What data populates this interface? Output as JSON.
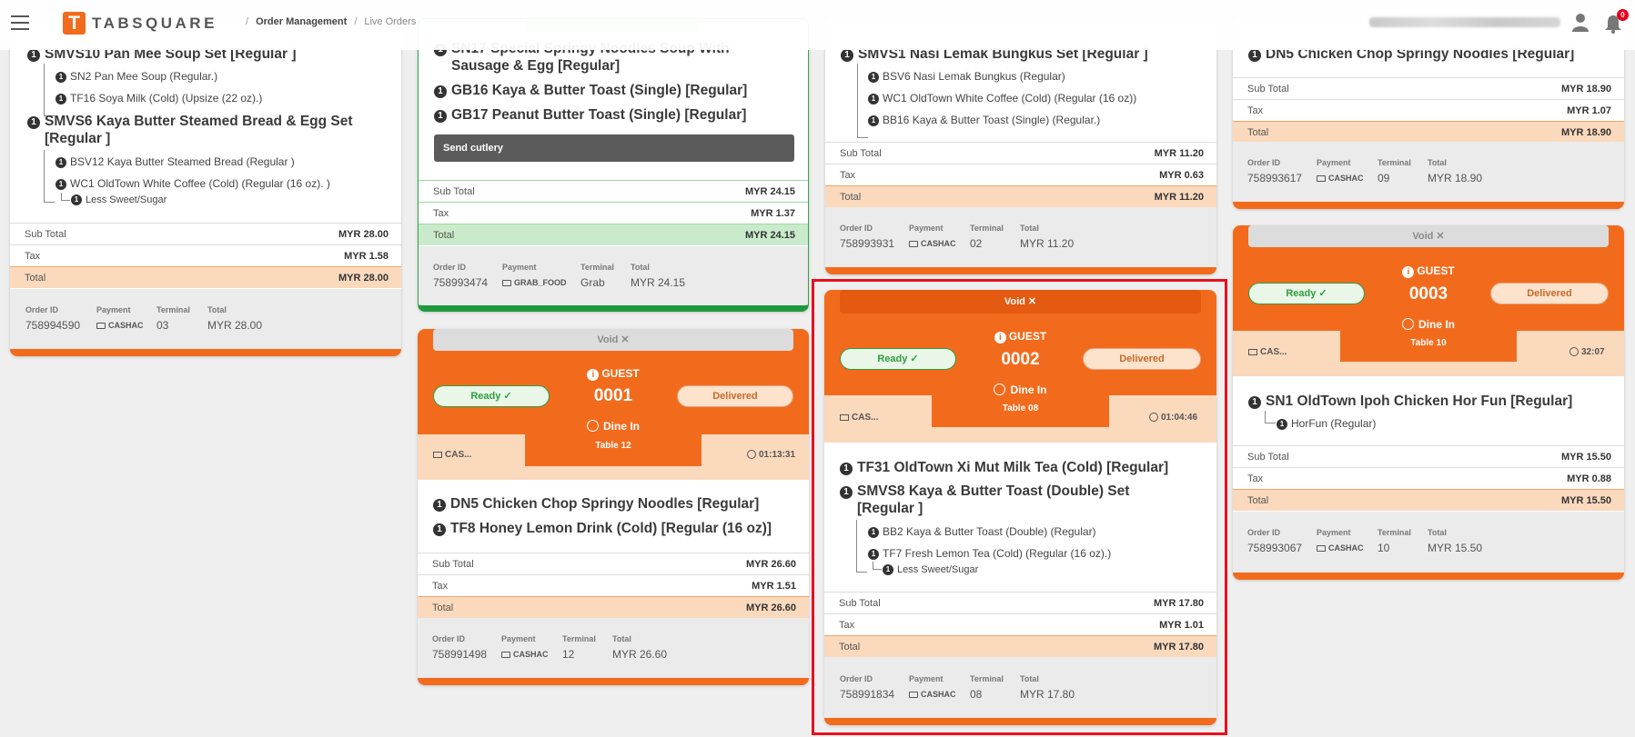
{
  "header": {
    "logo_letter": "T",
    "logo_text": "TABSQUARE",
    "breadcrumb": [
      "Order Management",
      "Live Orders"
    ],
    "notification_count": "0"
  },
  "colors": {
    "accent": "#f26b1d",
    "green": "#1e9a3d",
    "highlight": "#e8101d"
  },
  "card1": {
    "items": [
      {
        "qty": "1",
        "name": "SMVS10 Pan Mee Soup Set [Regular ]"
      },
      {
        "qty": "1",
        "name": "SN2 Pan Mee Soup (Regular.)"
      },
      {
        "qty": "1",
        "name": "TF16 Soya Milk (Cold) (Upsize (22 oz).)"
      },
      {
        "qty": "1",
        "name": "SMVS6 Kaya Butter Steamed Bread & Egg Set"
      },
      {
        "name": "[Regular ]"
      },
      {
        "qty": "1",
        "name": "BSV12 Kaya Butter Steamed Bread (Regular )"
      },
      {
        "qty": "1",
        "name": "WC1 OldTown White Coffee (Cold) (Regular (16 oz). )"
      },
      {
        "qty": "1",
        "name": "Less Sweet/Sugar"
      }
    ],
    "subtotal_label": "Sub Total",
    "subtotal": "MYR 28.00",
    "tax_label": "Tax",
    "tax": "MYR 1.58",
    "total_label": "Total",
    "total": "MYR 28.00",
    "order_id_label": "Order ID",
    "order_id": "758994590",
    "payment_label": "Payment",
    "payment": "CASHAC",
    "terminal_label": "Terminal",
    "terminal": "03",
    "foot_total_label": "Total",
    "foot_total": "MYR 28.00"
  },
  "card2": {
    "items": [
      {
        "qty": "1",
        "name": "SN17 Special Springy Noodles Soup With"
      },
      {
        "name": "Sausage & Egg [Regular]"
      },
      {
        "qty": "1",
        "name": "GB16 Kaya & Butter Toast (Single) [Regular]"
      },
      {
        "qty": "1",
        "name": "GB17 Peanut Butter Toast (Single) [Regular]"
      }
    ],
    "cutlery": "Send cutlery",
    "subtotal_label": "Sub Total",
    "subtotal": "MYR 24.15",
    "tax_label": "Tax",
    "tax": "MYR 1.37",
    "total_label": "Total",
    "total": "MYR 24.15",
    "order_id_label": "Order ID",
    "order_id": "758993474",
    "payment_label": "Payment",
    "payment": "GRAB_FOOD",
    "terminal_label": "Terminal",
    "terminal": "Grab",
    "foot_total_label": "Total",
    "foot_total": "MYR 24.15"
  },
  "card3": {
    "void": "Void ✕",
    "guest": "GUEST",
    "number": "0001",
    "ready": "Ready ✓",
    "delivered": "Delivered",
    "dine": "Dine In",
    "table": "Table 12",
    "cas": "CAS...",
    "timer": "01:13:31",
    "items": [
      {
        "qty": "1",
        "name": "DN5 Chicken Chop Springy Noodles [Regular]"
      },
      {
        "qty": "1",
        "name": "TF8 Honey Lemon Drink (Cold) [Regular (16 oz)]"
      }
    ],
    "subtotal_label": "Sub Total",
    "subtotal": "MYR 26.60",
    "tax_label": "Tax",
    "tax": "MYR 1.51",
    "total_label": "Total",
    "total": "MYR 26.60",
    "order_id_label": "Order ID",
    "order_id": "758991498",
    "payment_label": "Payment",
    "payment": "CASHAC",
    "terminal_label": "Terminal",
    "terminal": "12",
    "foot_total_label": "Total",
    "foot_total": "MYR 26.60"
  },
  "card4": {
    "items": [
      {
        "qty": "1",
        "name": "SMVS1 Nasi Lemak Bungkus Set [Regular ]"
      },
      {
        "qty": "1",
        "name": "BSV6 Nasi Lemak Bungkus (Regular)"
      },
      {
        "qty": "1",
        "name": "WC1 OldTown White Coffee (Cold) (Regular (16 oz))"
      },
      {
        "qty": "1",
        "name": "BB16 Kaya & Butter Toast (Single) (Regular.)"
      }
    ],
    "subtotal_label": "Sub Total",
    "subtotal": "MYR 11.20",
    "tax_label": "Tax",
    "tax": "MYR 0.63",
    "total_label": "Total",
    "total": "MYR 11.20",
    "order_id_label": "Order ID",
    "order_id": "758993931",
    "payment_label": "Payment",
    "payment": "CASHAC",
    "terminal_label": "Terminal",
    "terminal": "02",
    "foot_total_label": "Total",
    "foot_total": "MYR 11.20"
  },
  "card5": {
    "void": "Void ✕",
    "guest": "GUEST",
    "number": "0002",
    "ready": "Ready ✓",
    "delivered": "Delivered",
    "dine": "Dine In",
    "table": "Table 08",
    "cas": "CAS...",
    "timer": "01:04:46",
    "items": [
      {
        "qty": "1",
        "name": "TF31 OldTown Xi Mut Milk Tea (Cold) [Regular]"
      },
      {
        "qty": "1",
        "name": "SMVS8 Kaya & Butter Toast (Double) Set"
      },
      {
        "name": "[Regular ]"
      },
      {
        "qty": "1",
        "name": "BB2 Kaya & Butter Toast (Double) (Regular)"
      },
      {
        "qty": "1",
        "name": "TF7 Fresh Lemon Tea (Cold) (Regular (16 oz).)"
      },
      {
        "qty": "1",
        "name": "Less Sweet/Sugar"
      }
    ],
    "subtotal_label": "Sub Total",
    "subtotal": "MYR 17.80",
    "tax_label": "Tax",
    "tax": "MYR 1.01",
    "total_label": "Total",
    "total": "MYR 17.80",
    "order_id_label": "Order ID",
    "order_id": "758991834",
    "payment_label": "Payment",
    "payment": "CASHAC",
    "terminal_label": "Terminal",
    "terminal": "08",
    "foot_total_label": "Total",
    "foot_total": "MYR 17.80"
  },
  "card6": {
    "items": [
      {
        "qty": "1",
        "name": "DN5 Chicken Chop Springy Noodles [Regular]"
      }
    ],
    "subtotal_label": "Sub Total",
    "subtotal": "MYR 18.90",
    "tax_label": "Tax",
    "tax": "MYR 1.07",
    "total_label": "Total",
    "total": "MYR 18.90",
    "order_id_label": "Order ID",
    "order_id": "758993617",
    "payment_label": "Payment",
    "payment": "CASHAC",
    "terminal_label": "Terminal",
    "terminal": "09",
    "foot_total_label": "Total",
    "foot_total": "MYR 18.90"
  },
  "card7": {
    "void": "Void ✕",
    "guest": "GUEST",
    "number": "0003",
    "ready": "Ready ✓",
    "delivered": "Delivered",
    "dine": "Dine In",
    "table": "Table 10",
    "cas": "CAS...",
    "timer": "32:07",
    "items": [
      {
        "qty": "1",
        "name": "SN1 OldTown Ipoh Chicken Hor Fun [Regular]"
      },
      {
        "qty": "1",
        "name": "HorFun (Regular)"
      }
    ],
    "subtotal_label": "Sub Total",
    "subtotal": "MYR 15.50",
    "tax_label": "Tax",
    "tax": "MYR 0.88",
    "total_label": "Total",
    "total": "MYR 15.50",
    "order_id_label": "Order ID",
    "order_id": "758993067",
    "payment_label": "Payment",
    "payment": "CASHAC",
    "terminal_label": "Terminal",
    "terminal": "10",
    "foot_total_label": "Total",
    "foot_total": "MYR 15.50"
  }
}
